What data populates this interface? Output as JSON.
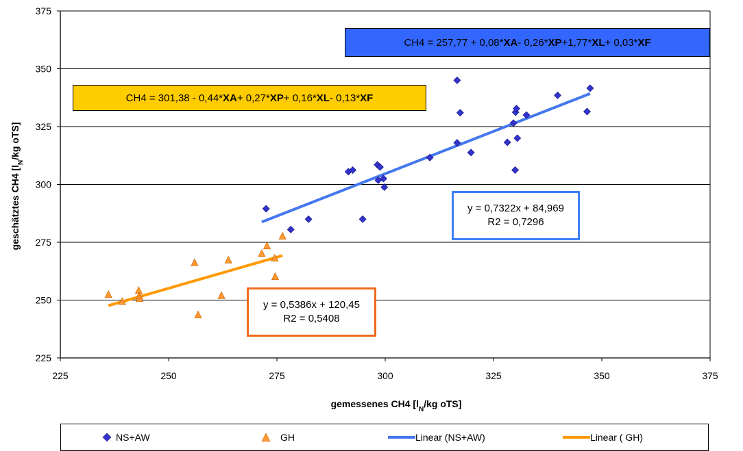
{
  "chart_data": {
    "type": "scatter",
    "xlabel": "gemessenes CH4 [l",
    "xlabel_sub": "N",
    "xlabel_tail": "/kg oTS]",
    "ylabel": "geschätztes CH4 [l",
    "ylabel_sub": "N",
    "ylabel_tail": "/kg oTS]",
    "xlim": [
      225,
      375
    ],
    "ylim": [
      225,
      375
    ],
    "xticks": [
      225,
      250,
      275,
      300,
      325,
      350,
      375
    ],
    "yticks": [
      225,
      250,
      275,
      300,
      325,
      350,
      375
    ],
    "grid": "horizontal",
    "legend_position": "bottom",
    "series": [
      {
        "name": "NS+AW",
        "marker": "diamond",
        "color": "#3333cc",
        "points": [
          [
            272.5,
            289.5
          ],
          [
            278.2,
            280.5
          ],
          [
            282.3,
            285
          ],
          [
            291.5,
            305.5
          ],
          [
            292.5,
            306.2
          ],
          [
            294.8,
            285
          ],
          [
            298.2,
            308.5
          ],
          [
            298.4,
            301.8
          ],
          [
            298.8,
            307.5
          ],
          [
            299.6,
            302.5
          ],
          [
            299.8,
            298.8
          ],
          [
            310.3,
            311.6
          ],
          [
            316.6,
            318
          ],
          [
            316.6,
            345
          ],
          [
            317.3,
            331
          ],
          [
            319.8,
            313.8
          ],
          [
            328.2,
            318.2
          ],
          [
            329.6,
            326.5
          ],
          [
            330.0,
            306.2
          ],
          [
            330.1,
            331.2
          ],
          [
            330.3,
            332.8
          ],
          [
            330.5,
            320
          ],
          [
            332.6,
            330
          ],
          [
            339.8,
            338.5
          ],
          [
            346.6,
            331.5
          ],
          [
            347.3,
            341.6
          ]
        ]
      },
      {
        "name": "GH",
        "marker": "triangle",
        "color": "#ff9933",
        "points": [
          [
            236.1,
            252.3
          ],
          [
            239.3,
            249.3
          ],
          [
            243.1,
            254
          ],
          [
            243.2,
            251.6
          ],
          [
            243.3,
            250.5
          ],
          [
            256.0,
            266
          ],
          [
            256.8,
            243.5
          ],
          [
            262.2,
            251.8
          ],
          [
            263.8,
            267.2
          ],
          [
            271.5,
            270
          ],
          [
            272.7,
            273.3
          ],
          [
            274.5,
            268
          ],
          [
            274.6,
            260
          ],
          [
            276.3,
            277.5
          ]
        ]
      }
    ],
    "trendlines": [
      {
        "name": "Linear (NS+AW)",
        "color": "#4477ee",
        "slope": 0.7322,
        "intercept": 84.969,
        "x_range": [
          271.5,
          347.3
        ],
        "equation": "y = 0,7322x + 84,969",
        "r2": "R2 = 0,7296"
      },
      {
        "name": "Linear ( GH)",
        "color": "#ff9900",
        "slope": 0.5386,
        "intercept": 120.45,
        "x_range": [
          236.1,
          276.3
        ],
        "equation": "y = 0,5386x + 120,45",
        "r2": "R2 = 0,5408"
      }
    ],
    "annotations": {
      "blue_equation": [
        {
          "t": "CH4 = 257,77 + 0,08*",
          "b": false
        },
        {
          "t": "XA",
          "b": true
        },
        {
          "t": " - 0,26*",
          "b": false
        },
        {
          "t": "XP",
          "b": true
        },
        {
          "t": " +1,77*",
          "b": false
        },
        {
          "t": "XL",
          "b": true
        },
        {
          "t": " + 0,03*",
          "b": false
        },
        {
          "t": "XF",
          "b": true
        }
      ],
      "gold_equation": [
        {
          "t": "CH4 = 301,38 - 0,44*",
          "b": false
        },
        {
          "t": "XA",
          "b": true
        },
        {
          "t": " + 0,27*",
          "b": false
        },
        {
          "t": "XP",
          "b": true
        },
        {
          "t": " + 0,16*",
          "b": false
        },
        {
          "t": "XL",
          "b": true
        },
        {
          "t": " - 0,13*",
          "b": false
        },
        {
          "t": "XF",
          "b": true
        }
      ]
    },
    "legend": [
      {
        "label": "NS+AW",
        "kind": "diamond",
        "color": "#3333cc"
      },
      {
        "label": "GH",
        "kind": "triangle",
        "color": "#ff9933"
      },
      {
        "label": "Linear (NS+AW)",
        "kind": "line",
        "color": "#4477ee"
      },
      {
        "label": "Linear ( GH)",
        "kind": "line",
        "color": "#ff9900"
      }
    ]
  }
}
